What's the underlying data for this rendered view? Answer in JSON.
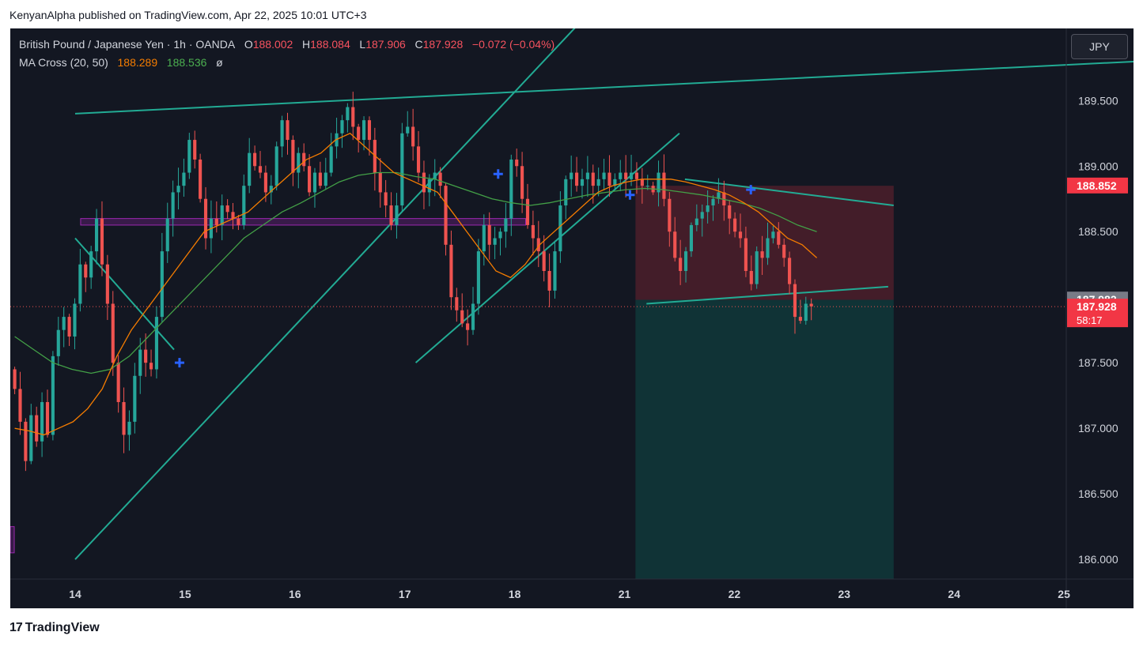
{
  "publisher_line": "KenyanAlpha published on TradingView.com, Apr 22, 2025 10:01 UTC+3",
  "legend": {
    "symbol": "British Pound / Japanese Yen · 1h · OANDA",
    "o_label": "O",
    "o": "188.002",
    "h_label": "H",
    "h": "188.084",
    "l_label": "L",
    "l": "187.906",
    "c_label": "C",
    "c": "187.928",
    "change": "−0.072 (−0.04%)",
    "ma_label": "MA Cross (20, 50)",
    "ma20": "188.289",
    "ma50": "188.536",
    "ma_extra": "ø"
  },
  "currency_button": "JPY",
  "brand": "TradingView",
  "colors": {
    "background": "#131722",
    "up": "#26a69a",
    "down": "#ef5350",
    "ma20": "#f57c00",
    "ma50": "#43a047",
    "trendline": "#22ab94",
    "cross_marker": "#2962ff"
  },
  "chart_data": {
    "type": "candlestick",
    "x_tick_labels": [
      "14",
      "15",
      "16",
      "17",
      "18",
      "21",
      "22",
      "23",
      "24",
      "25"
    ],
    "y_tick_labels": [
      "189.500",
      "189.000",
      "188.500",
      "188.000",
      "187.500",
      "187.000",
      "186.500",
      "186.000"
    ],
    "y_ticks": [
      189.5,
      189.0,
      188.5,
      188.0,
      187.5,
      187.0,
      186.5,
      186.0
    ],
    "ylim": [
      185.85,
      190.05
    ],
    "price_labels": [
      {
        "value": 188.852,
        "text": "188.852",
        "color": "#f23645"
      },
      {
        "value": 187.982,
        "text": "187.982",
        "color": "#787b86"
      },
      {
        "value": 187.928,
        "text": "187.928",
        "color": "#f23645",
        "sub": "58:17"
      }
    ],
    "last_price": 187.928,
    "close_series": [
      187.3,
      187.05,
      186.75,
      187.1,
      186.9,
      187.2,
      186.95,
      187.55,
      187.75,
      187.85,
      187.7,
      187.95,
      188.25,
      188.15,
      188.35,
      188.6,
      188.25,
      187.95,
      187.5,
      187.2,
      186.95,
      187.05,
      187.4,
      187.6,
      187.5,
      187.45,
      187.85,
      188.35,
      188.6,
      188.8,
      188.85,
      188.95,
      189.2,
      189.05,
      188.75,
      188.45,
      188.6,
      188.55,
      188.7,
      188.65,
      188.6,
      188.55,
      188.85,
      189.1,
      189.0,
      188.95,
      188.8,
      188.85,
      189.15,
      189.35,
      189.2,
      188.95,
      189.1,
      189.0,
      188.8,
      188.95,
      188.85,
      188.95,
      189.15,
      189.25,
      189.35,
      189.45,
      189.3,
      189.2,
      189.35,
      189.2,
      188.95,
      188.8,
      188.7,
      188.55,
      188.7,
      189.25,
      189.3,
      189.15,
      188.95,
      188.8,
      188.9,
      188.95,
      188.85,
      188.4,
      188.0,
      187.9,
      187.8,
      187.75,
      187.95,
      188.35,
      188.55,
      188.4,
      188.45,
      188.5,
      188.6,
      189.05,
      189.0,
      188.75,
      188.55,
      188.45,
      188.35,
      188.2,
      188.05,
      188.35,
      188.7,
      188.9,
      188.95,
      188.85,
      188.9,
      188.95,
      188.85,
      188.9,
      188.95,
      188.85,
      188.9,
      188.95,
      188.9,
      188.95,
      188.9,
      188.85,
      188.85,
      188.8,
      188.95,
      188.75,
      188.5,
      188.3,
      188.2,
      188.35,
      188.55,
      188.6,
      188.65,
      188.7,
      188.75,
      188.8,
      188.7,
      188.6,
      188.5,
      188.45,
      188.2,
      188.1,
      188.35,
      188.3,
      188.45,
      188.5,
      188.4,
      188.3,
      188.1,
      187.85,
      187.82,
      187.95,
      187.93
    ],
    "ma20_values": [
      187.0,
      186.98,
      186.95,
      187.0,
      187.05,
      187.15,
      187.3,
      187.55,
      187.75,
      187.9,
      188.05,
      188.2,
      188.35,
      188.5,
      188.55,
      188.6,
      188.65,
      188.75,
      188.85,
      188.95,
      189.05,
      189.1,
      189.2,
      189.25,
      189.15,
      189.05,
      188.95,
      188.9,
      188.85,
      188.8,
      188.65,
      188.5,
      188.35,
      188.2,
      188.15,
      188.25,
      188.4,
      188.5,
      188.6,
      188.7,
      188.8,
      188.85,
      188.88,
      188.9,
      188.9,
      188.9,
      188.88,
      188.85,
      188.82,
      188.78,
      188.72,
      188.65,
      188.55,
      188.45,
      188.4,
      188.3
    ],
    "ma50_values": [
      187.7,
      187.6,
      187.5,
      187.45,
      187.42,
      187.45,
      187.55,
      187.7,
      187.85,
      188.0,
      188.15,
      188.3,
      188.45,
      188.55,
      188.65,
      188.72,
      188.8,
      188.88,
      188.93,
      188.95,
      188.95,
      188.92,
      188.9,
      188.85,
      188.8,
      188.75,
      188.72,
      188.7,
      188.72,
      188.75,
      188.78,
      188.8,
      188.82,
      188.83,
      188.82,
      188.8,
      188.78,
      188.75,
      188.72,
      188.68,
      188.62,
      188.55,
      188.5
    ],
    "trendlines": [
      {
        "from": [
          0.0,
          189.4
        ],
        "to": [
          9.7,
          189.8
        ]
      },
      {
        "from": [
          0.0,
          186.0
        ],
        "to": [
          4.6,
          190.1
        ]
      },
      {
        "from": [
          3.1,
          187.5
        ],
        "to": [
          5.5,
          189.25
        ]
      },
      {
        "from": [
          0.0,
          188.45
        ],
        "to": [
          0.9,
          187.6
        ]
      },
      {
        "from": [
          5.55,
          188.9
        ],
        "to": [
          7.45,
          188.7
        ]
      },
      {
        "from": [
          5.2,
          187.95
        ],
        "to": [
          7.4,
          188.08
        ]
      }
    ],
    "zones": [
      {
        "kind": "resistance-band",
        "x0": 0.05,
        "x1": 4.1,
        "y0": 188.55,
        "y1": 188.6
      },
      {
        "kind": "stop",
        "x0": 5.1,
        "x1": 7.45,
        "y0": 187.98,
        "y1": 188.85
      },
      {
        "kind": "target",
        "x0": 5.1,
        "x1": 7.45,
        "y0": 185.85,
        "y1": 187.98
      }
    ],
    "cross_markers": [
      {
        "x": 0.95,
        "value": 187.5
      },
      {
        "x": 3.85,
        "value": 188.94
      },
      {
        "x": 5.05,
        "value": 188.78
      },
      {
        "x": 6.15,
        "value": 188.82
      }
    ]
  }
}
